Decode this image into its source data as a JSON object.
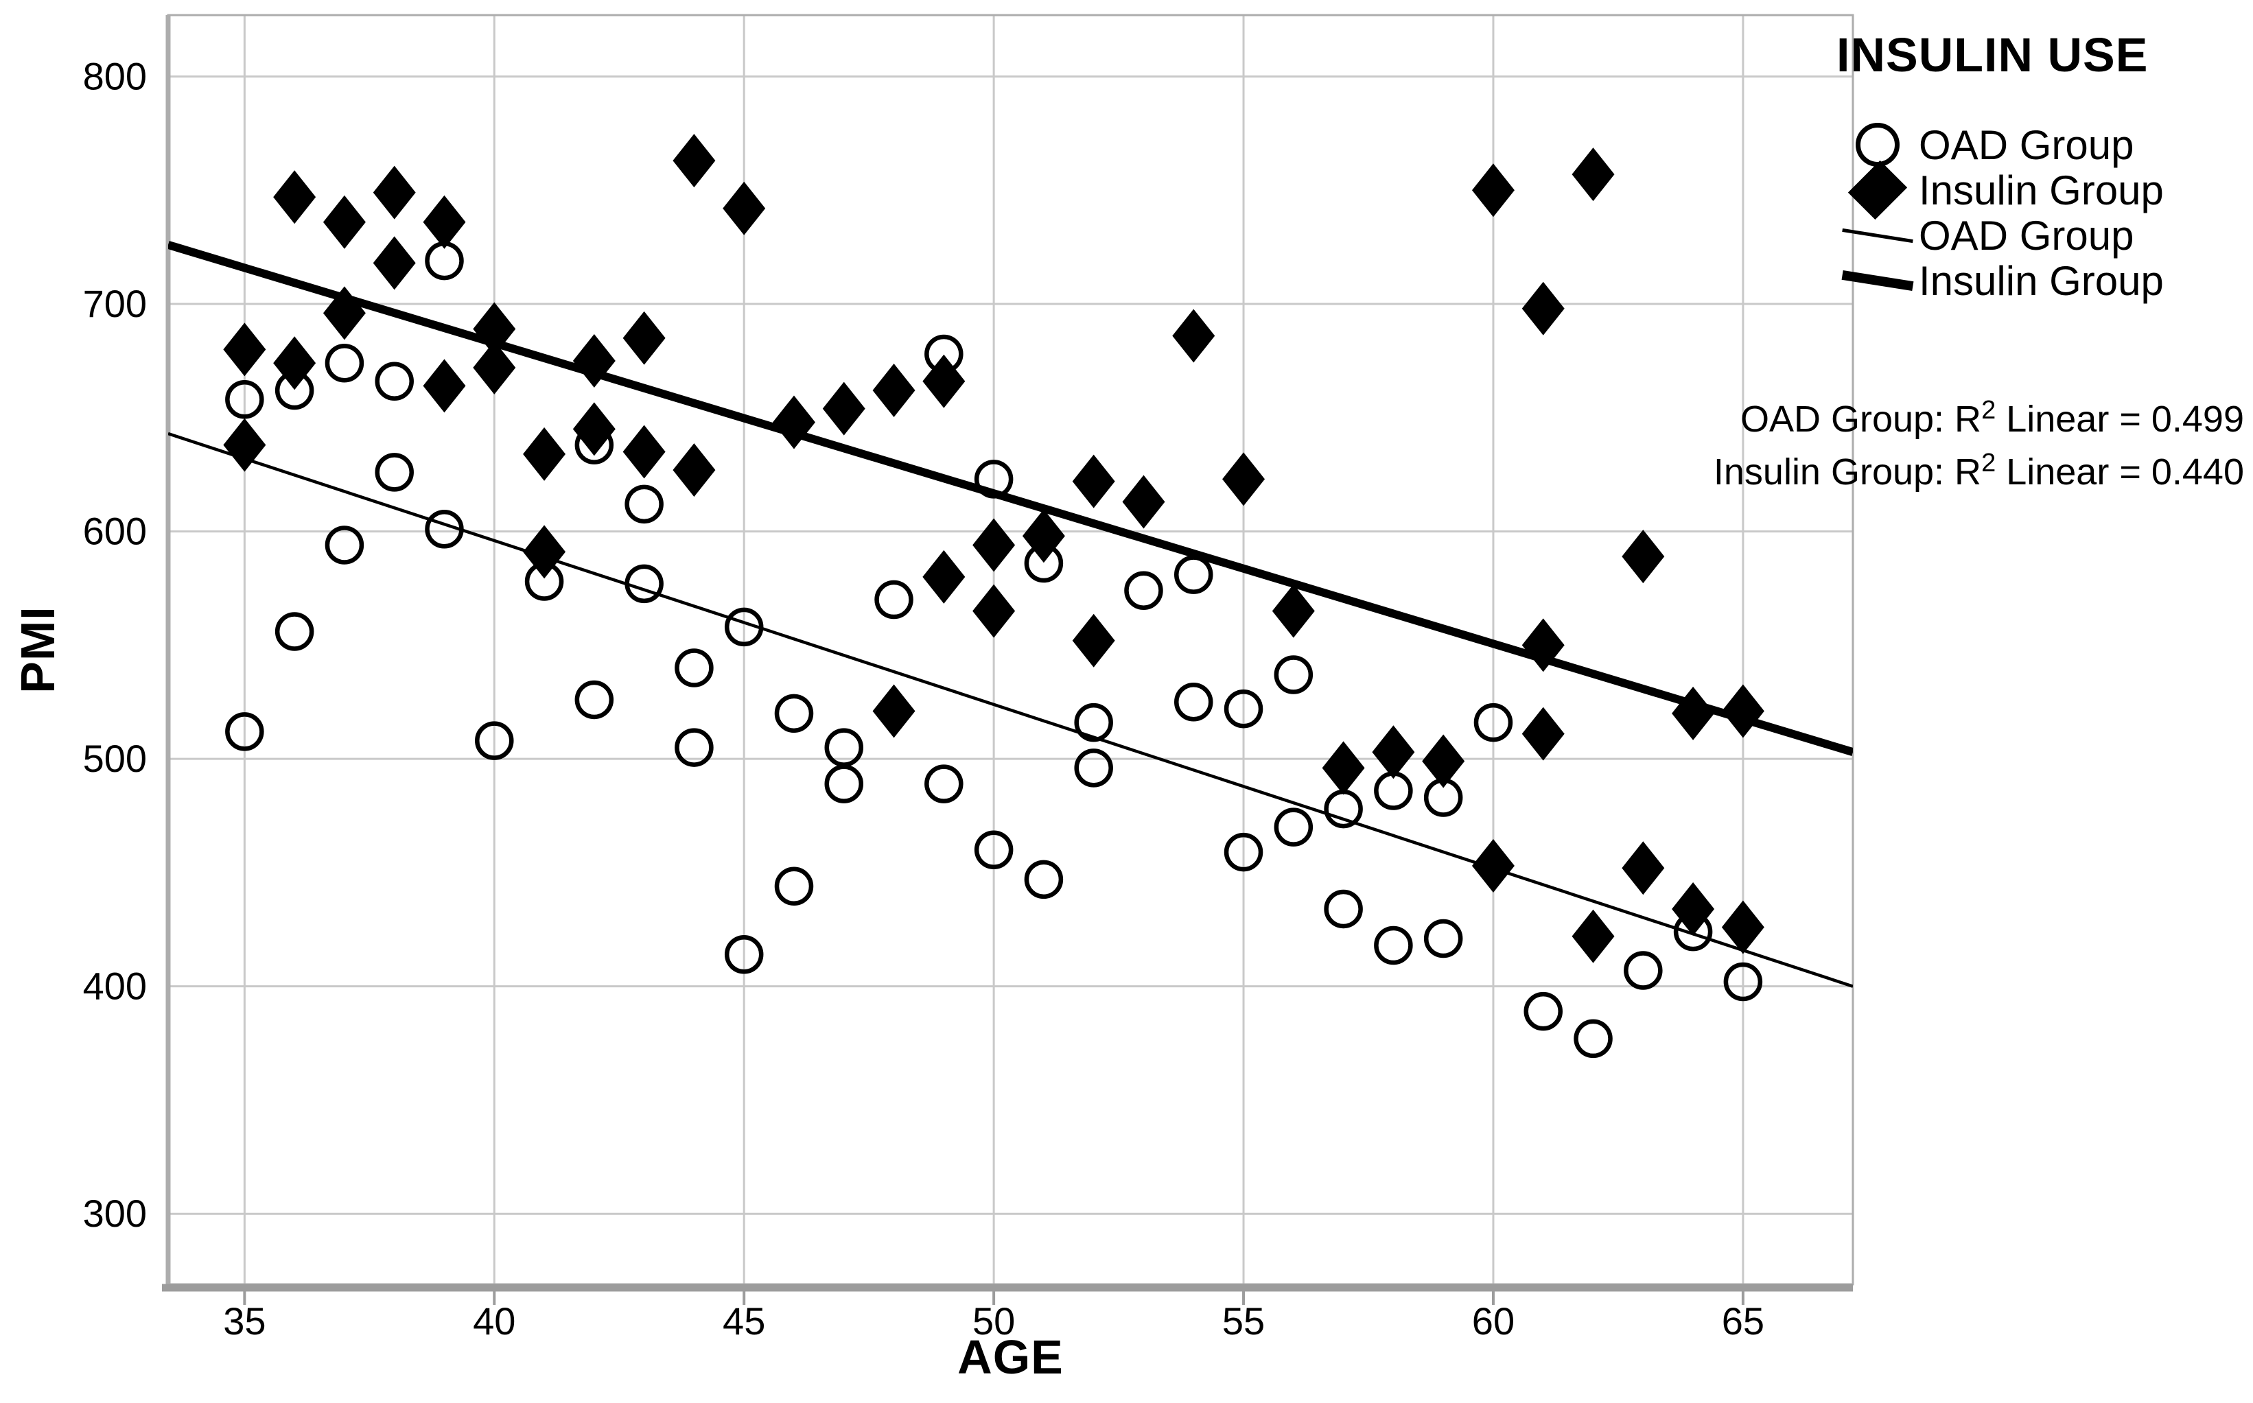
{
  "chart_data": {
    "type": "scatter",
    "title": "",
    "xlabel": "AGE",
    "ylabel": "PMI",
    "x_ticks": [
      35,
      40,
      45,
      50,
      55,
      60,
      65
    ],
    "y_ticks": [
      800,
      700,
      600,
      500,
      400,
      300
    ],
    "xlim": [
      33.47,
      67.2
    ],
    "ylim": [
      269,
      827
    ],
    "grid": true,
    "legend_position": "top-right-outside",
    "series": [
      {
        "name": "OAD Group",
        "marker": "circle",
        "points": [
          [
            35,
            658
          ],
          [
            35,
            512
          ],
          [
            36,
            662
          ],
          [
            36,
            556
          ],
          [
            37,
            674
          ],
          [
            37,
            594
          ],
          [
            38,
            666
          ],
          [
            38,
            626
          ],
          [
            39,
            719
          ],
          [
            39,
            601
          ],
          [
            40,
            508
          ],
          [
            41,
            578
          ],
          [
            42,
            638
          ],
          [
            42,
            526
          ],
          [
            43,
            612
          ],
          [
            43,
            577
          ],
          [
            44,
            540
          ],
          [
            44,
            505
          ],
          [
            45,
            558
          ],
          [
            45,
            414
          ],
          [
            46,
            520
          ],
          [
            46,
            444
          ],
          [
            47,
            505
          ],
          [
            47,
            489
          ],
          [
            48,
            570
          ],
          [
            49,
            678
          ],
          [
            49,
            489
          ],
          [
            50,
            623
          ],
          [
            50,
            460
          ],
          [
            51,
            586
          ],
          [
            51,
            447
          ],
          [
            52,
            516
          ],
          [
            52,
            496
          ],
          [
            53,
            574
          ],
          [
            54,
            581
          ],
          [
            54,
            525
          ],
          [
            55,
            522
          ],
          [
            55,
            459
          ],
          [
            56,
            537
          ],
          [
            56,
            470
          ],
          [
            57,
            478
          ],
          [
            57,
            434
          ],
          [
            58,
            486
          ],
          [
            58,
            418
          ],
          [
            59,
            483
          ],
          [
            59,
            421
          ],
          [
            60,
            516
          ],
          [
            61,
            389
          ],
          [
            62,
            377
          ],
          [
            63,
            407
          ],
          [
            64,
            424
          ],
          [
            65,
            402
          ]
        ]
      },
      {
        "name": "Insulin Group",
        "marker": "diamond",
        "points": [
          [
            35,
            680
          ],
          [
            35,
            638
          ],
          [
            36,
            747
          ],
          [
            36,
            674
          ],
          [
            37,
            736
          ],
          [
            37,
            696
          ],
          [
            38,
            749
          ],
          [
            38,
            718
          ],
          [
            39,
            736
          ],
          [
            39,
            664
          ],
          [
            40,
            689
          ],
          [
            40,
            672
          ],
          [
            41,
            634
          ],
          [
            41,
            591
          ],
          [
            42,
            675
          ],
          [
            42,
            645
          ],
          [
            43,
            685
          ],
          [
            43,
            635
          ],
          [
            44,
            763
          ],
          [
            44,
            627
          ],
          [
            45,
            742
          ],
          [
            46,
            648
          ],
          [
            47,
            654
          ],
          [
            48,
            662
          ],
          [
            48,
            521
          ],
          [
            49,
            666
          ],
          [
            49,
            580
          ],
          [
            50,
            594
          ],
          [
            50,
            565
          ],
          [
            51,
            598
          ],
          [
            52,
            622
          ],
          [
            52,
            552
          ],
          [
            53,
            613
          ],
          [
            54,
            686
          ],
          [
            55,
            623
          ],
          [
            56,
            565
          ],
          [
            57,
            496
          ],
          [
            58,
            503
          ],
          [
            59,
            499
          ],
          [
            60,
            750
          ],
          [
            60,
            453
          ],
          [
            61,
            698
          ],
          [
            61,
            550
          ],
          [
            61,
            511
          ],
          [
            62,
            757
          ],
          [
            62,
            422
          ],
          [
            63,
            589
          ],
          [
            63,
            452
          ],
          [
            64,
            520
          ],
          [
            64,
            434
          ],
          [
            65,
            521
          ],
          [
            65,
            426
          ]
        ]
      }
    ],
    "fit_lines": [
      {
        "name": "OAD Group",
        "weight": "thin",
        "x": [
          33.47,
          67.2
        ],
        "y": [
          643,
          400
        ]
      },
      {
        "name": "Insulin Group",
        "weight": "thick",
        "x": [
          33.47,
          67.2
        ],
        "y": [
          726,
          503
        ]
      }
    ],
    "annotations": [
      {
        "pre": "OAD Group: R",
        "sup": "2",
        "post": " Linear = 0.499"
      },
      {
        "pre": "Insulin Group: R",
        "sup": "2",
        "post": " Linear = 0.440"
      }
    ]
  },
  "legend": {
    "title": "INSULIN USE",
    "items": [
      {
        "marker": "circle",
        "label": "OAD Group"
      },
      {
        "marker": "diamond",
        "label": "Insulin Group"
      },
      {
        "marker": "thin-line",
        "label": "OAD Group"
      },
      {
        "marker": "thick-line",
        "label": "Insulin Group"
      }
    ]
  },
  "colors": {
    "background": "#ffffff",
    "marker": "#000000",
    "text": "#000000",
    "grid": "#c9c9c9",
    "frame": "#adadad",
    "axis": "#9c9c9c"
  }
}
